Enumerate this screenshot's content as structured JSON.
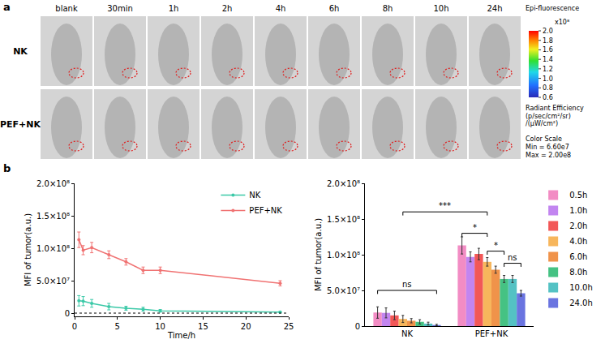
{
  "panel_a": {
    "letter": "a",
    "columns": [
      "blank",
      "30min",
      "1h",
      "2h",
      "4h",
      "6h",
      "8h",
      "10h",
      "24h"
    ],
    "rows": [
      "NK",
      "PEF+NK"
    ],
    "colorbar": {
      "title": "Epi-fluorescence",
      "multiplier": "x10⁸",
      "range": [
        0.6,
        2.0
      ],
      "ticks": [
        0.6,
        0.8,
        {
          "value": 1.0,
          "label": "1.0"
        },
        1.2,
        1.4,
        1.6,
        1.8,
        {
          "value": 2.0,
          "label": "2.0"
        }
      ],
      "quantity": "Radiant Efficiency",
      "units_lines": [
        "(p/sec/cm²/sr)",
        "/(μW/cm²)"
      ],
      "scale_title": "Color Scale",
      "min_label": "Min = 6.60e7",
      "max_label": "Max = 2.00e8"
    }
  },
  "panel_b": {
    "letter": "b"
  },
  "chart_data": [
    {
      "type": "line",
      "x_label": "Time/h",
      "y_label": "MFI of tumor(a.u.)",
      "x": [
        0.5,
        1,
        2,
        4,
        6,
        8,
        10,
        24
      ],
      "series": [
        {
          "name": "NK",
          "color": "#3cc9a8",
          "values": [
            19000000,
            18500000,
            15000000,
            10000000,
            7500000,
            6000000,
            3500000,
            1500000
          ],
          "errors": [
            8000000,
            7000000,
            6000000,
            5000000,
            3000000,
            3000000,
            2000000,
            1000000
          ]
        },
        {
          "name": "PEF+NK",
          "color": "#f07272",
          "values": [
            113000000,
            97000000,
            101000000,
            90000000,
            79000000,
            66000000,
            66000000,
            46000000
          ],
          "errors": [
            12000000,
            7000000,
            8000000,
            6000000,
            5000000,
            5000000,
            5000000,
            4000000
          ]
        }
      ],
      "xlim": [
        0,
        25
      ],
      "xticks": [
        0,
        5,
        10,
        15,
        20,
        25
      ],
      "ylim": [
        -5000000,
        200000000
      ],
      "yticks": [
        0,
        {
          "value": 50000000,
          "label": "5.0×10⁷"
        },
        {
          "value": 100000000,
          "label": "1.0×10⁸"
        },
        {
          "value": 150000000,
          "label": "1.5×10⁸"
        },
        {
          "value": 200000000,
          "label": "2.0×10⁸"
        }
      ],
      "legend": "top-right",
      "marker": "circle"
    },
    {
      "type": "bar",
      "y_label": "MFI of tumor(a.u.)",
      "categories": [
        "NK",
        "PEF+NK"
      ],
      "series": [
        {
          "name": "0.5h",
          "color": "#f28cc4",
          "values": [
            19000000,
            113000000
          ],
          "errors": [
            8000000,
            12000000
          ]
        },
        {
          "name": "1.0h",
          "color": "#c285f0",
          "values": [
            18500000,
            97000000
          ],
          "errors": [
            7000000,
            7000000
          ]
        },
        {
          "name": "2.0h",
          "color": "#f25757",
          "values": [
            15000000,
            101000000
          ],
          "errors": [
            6000000,
            8000000
          ]
        },
        {
          "name": "4.0h",
          "color": "#f7b65c",
          "values": [
            10000000,
            90000000
          ],
          "errors": [
            5000000,
            6000000
          ]
        },
        {
          "name": "6.0h",
          "color": "#f0934a",
          "values": [
            7500000,
            79000000
          ],
          "errors": [
            3000000,
            5000000
          ]
        },
        {
          "name": "8.0h",
          "color": "#45c283",
          "values": [
            6000000,
            66000000
          ],
          "errors": [
            3000000,
            5000000
          ]
        },
        {
          "name": "10.0h",
          "color": "#54c2c4",
          "values": [
            3500000,
            66000000
          ],
          "errors": [
            2000000,
            5000000
          ]
        },
        {
          "name": "24.0h",
          "color": "#6a74e0",
          "values": [
            1500000,
            46000000
          ],
          "errors": [
            1000000,
            4000000
          ]
        }
      ],
      "ylim": [
        0,
        200000000
      ],
      "yticks": [
        0,
        {
          "value": 50000000,
          "label": "5.0×10⁷"
        },
        {
          "value": 100000000,
          "label": "1.0×10⁸"
        },
        {
          "value": 150000000,
          "label": "1.5×10⁸"
        },
        {
          "value": 200000000,
          "label": "2.0×10⁸"
        }
      ],
      "legend": "right",
      "brackets": [
        {
          "text": "ns",
          "from": {
            "category": "NK",
            "series": "0.5h"
          },
          "to": {
            "category": "NK",
            "series": "24.0h"
          },
          "y": 50000000
        },
        {
          "text": "***",
          "from": {
            "category": "NK",
            "series": "4.0h"
          },
          "to": {
            "category": "PEF+NK",
            "series": "4.0h"
          },
          "y": 160000000
        },
        {
          "text": "*",
          "from": {
            "category": "PEF+NK",
            "series": "0.5h"
          },
          "to": {
            "category": "PEF+NK",
            "series": "4.0h"
          },
          "y": 130000000
        },
        {
          "text": "*",
          "from": {
            "category": "PEF+NK",
            "series": "4.0h"
          },
          "to": {
            "category": "PEF+NK",
            "series": "8.0h"
          },
          "y": 105000000
        },
        {
          "text": "ns",
          "from": {
            "category": "PEF+NK",
            "series": "8.0h"
          },
          "to": {
            "category": "PEF+NK",
            "series": "24.0h"
          },
          "y": 88000000
        }
      ]
    }
  ]
}
